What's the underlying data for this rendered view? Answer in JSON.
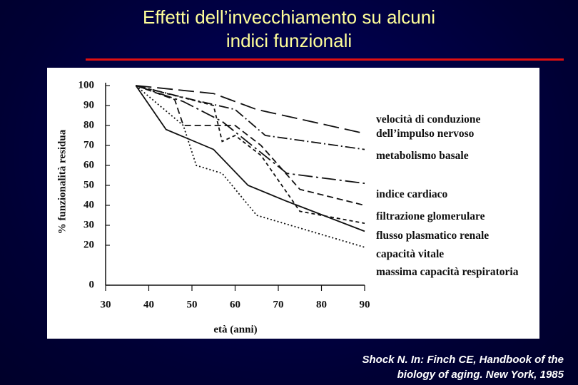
{
  "slide": {
    "title": [
      "Effetti dell’invecchiamento su alcuni",
      "indici funzionali"
    ],
    "citation": [
      "Shock N. In: Finch CE, Handbook of the",
      "biology of aging. New York, 1985"
    ]
  },
  "chart_data": {
    "type": "line",
    "xlabel": "età (anni)",
    "ylabel": "% funzionalità residua",
    "xlim": [
      30,
      90
    ],
    "xticks": [
      30,
      40,
      50,
      60,
      70,
      80,
      90
    ],
    "ylim": [
      0,
      100
    ],
    "yticks": [
      0,
      20,
      30,
      40,
      50,
      60,
      70,
      80,
      90,
      100
    ],
    "series": [
      {
        "name": "velocità di conduzione dell’impulso nervoso",
        "color": "#111111",
        "dash": "22 8",
        "x": [
          37,
          55,
          65,
          90
        ],
        "values": [
          100,
          96,
          88,
          76
        ]
      },
      {
        "name": "metabolismo basale",
        "color": "#111111",
        "dash": "14 4 2 4",
        "x": [
          37,
          50,
          60,
          67,
          90
        ],
        "values": [
          100,
          93,
          88,
          75,
          68
        ]
      },
      {
        "name": "indice cardiaco",
        "color": "#111111",
        "dash": "20 5 3 5",
        "x": [
          37,
          48,
          57,
          72,
          90
        ],
        "values": [
          100,
          92,
          82,
          56,
          51
        ]
      },
      {
        "name": "filtrazione glomerulare",
        "color": "#111111",
        "dash": "9 5",
        "x": [
          37,
          46,
          48,
          55,
          60,
          66,
          75,
          90
        ],
        "values": [
          100,
          93,
          80,
          80,
          80,
          70,
          48,
          40
        ]
      },
      {
        "name": "flusso plasmatico renale",
        "color": "#111111",
        "dash": "5 4",
        "x": [
          37,
          55,
          57,
          60,
          66,
          75,
          90
        ],
        "values": [
          100,
          90,
          72,
          75,
          65,
          37,
          31
        ]
      },
      {
        "name": "capacità vitale",
        "color": "#111111",
        "dash": "",
        "x": [
          37,
          44,
          55,
          63,
          72,
          90
        ],
        "values": [
          100,
          78,
          68,
          50,
          42,
          27
        ]
      },
      {
        "name": "massima capacità respiratoria",
        "color": "#111111",
        "dash": "2 3",
        "x": [
          37,
          48,
          51,
          57,
          65,
          90
        ],
        "values": [
          100,
          80,
          60,
          56,
          35,
          19
        ]
      }
    ]
  }
}
